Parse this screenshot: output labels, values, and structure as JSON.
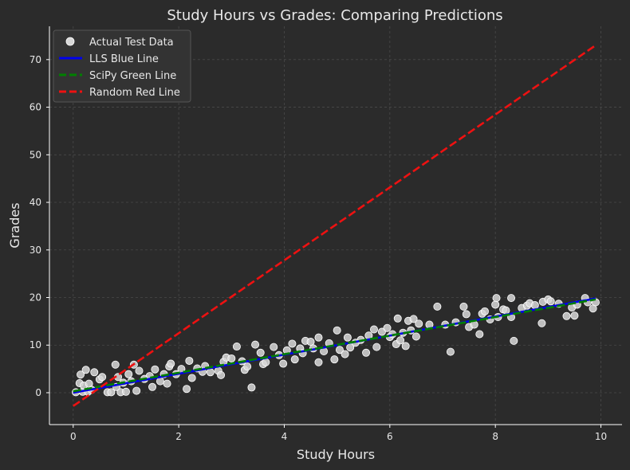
{
  "chart_data": {
    "type": "scatter",
    "title": "Study Hours vs Grades: Comparing Predictions",
    "xlabel": "Study Hours",
    "ylabel": "Grades",
    "xlim": [
      -0.45,
      10.4
    ],
    "ylim": [
      -6.7,
      77.0
    ],
    "x_ticks": [
      0,
      2,
      4,
      6,
      8,
      10
    ],
    "y_ticks": [
      0,
      10,
      20,
      30,
      40,
      50,
      60,
      70
    ],
    "grid": true,
    "legend_position": "top-left",
    "colors": {
      "background": "#2b2b2b",
      "axis": "#ffffff",
      "grid": "#4a4a4a",
      "points": "#d8d8d8",
      "blue_line": "#0000ee",
      "green_line": "#008000",
      "red_line": "#ee1111"
    },
    "series": [
      {
        "name": "Actual Test Data",
        "kind": "scatter",
        "points": [
          [
            0.05,
            0.1
          ],
          [
            0.12,
            2.0
          ],
          [
            0.14,
            3.8
          ],
          [
            0.18,
            0.2
          ],
          [
            0.2,
            1.5
          ],
          [
            0.24,
            4.8
          ],
          [
            0.28,
            0.2
          ],
          [
            0.3,
            1.9
          ],
          [
            0.35,
            0.6
          ],
          [
            0.4,
            4.3
          ],
          [
            0.5,
            2.8
          ],
          [
            0.55,
            3.3
          ],
          [
            0.65,
            0.1
          ],
          [
            0.72,
            0.1
          ],
          [
            0.8,
            5.9
          ],
          [
            0.82,
            1.2
          ],
          [
            0.85,
            3.3
          ],
          [
            0.9,
            0.1
          ],
          [
            0.95,
            2.1
          ],
          [
            1.0,
            0.2
          ],
          [
            1.05,
            3.9
          ],
          [
            1.1,
            2.4
          ],
          [
            1.15,
            5.9
          ],
          [
            1.2,
            0.4
          ],
          [
            1.25,
            4.6
          ],
          [
            1.35,
            2.9
          ],
          [
            1.45,
            3.5
          ],
          [
            1.5,
            1.2
          ],
          [
            1.55,
            4.9
          ],
          [
            1.65,
            2.4
          ],
          [
            1.72,
            3.9
          ],
          [
            1.78,
            1.9
          ],
          [
            1.82,
            5.5
          ],
          [
            1.85,
            6.1
          ],
          [
            1.95,
            3.9
          ],
          [
            2.05,
            5.0
          ],
          [
            2.15,
            0.8
          ],
          [
            2.2,
            6.7
          ],
          [
            2.25,
            3.1
          ],
          [
            2.35,
            5.1
          ],
          [
            2.45,
            4.4
          ],
          [
            2.5,
            5.6
          ],
          [
            2.6,
            4.3
          ],
          [
            2.75,
            4.6
          ],
          [
            2.8,
            3.7
          ],
          [
            2.85,
            6.5
          ],
          [
            2.9,
            7.4
          ],
          [
            3.0,
            7.2
          ],
          [
            3.1,
            9.7
          ],
          [
            3.2,
            6.6
          ],
          [
            3.25,
            4.8
          ],
          [
            3.3,
            5.5
          ],
          [
            3.38,
            1.1
          ],
          [
            3.45,
            10.1
          ],
          [
            3.55,
            8.4
          ],
          [
            3.6,
            6.0
          ],
          [
            3.65,
            6.4
          ],
          [
            3.8,
            9.6
          ],
          [
            3.9,
            7.9
          ],
          [
            3.98,
            6.1
          ],
          [
            4.05,
            8.9
          ],
          [
            4.15,
            10.3
          ],
          [
            4.2,
            7.0
          ],
          [
            4.3,
            9.3
          ],
          [
            4.35,
            8.3
          ],
          [
            4.4,
            10.9
          ],
          [
            4.5,
            10.7
          ],
          [
            4.55,
            9.3
          ],
          [
            4.65,
            11.6
          ],
          [
            4.65,
            6.4
          ],
          [
            4.75,
            8.7
          ],
          [
            4.85,
            10.4
          ],
          [
            4.95,
            7.0
          ],
          [
            5.0,
            13.1
          ],
          [
            5.05,
            9.0
          ],
          [
            5.15,
            8.1
          ],
          [
            5.2,
            11.6
          ],
          [
            5.25,
            9.5
          ],
          [
            5.35,
            10.5
          ],
          [
            5.45,
            11.1
          ],
          [
            5.55,
            8.4
          ],
          [
            5.6,
            12.0
          ],
          [
            5.7,
            13.3
          ],
          [
            5.75,
            9.6
          ],
          [
            5.85,
            12.8
          ],
          [
            5.95,
            13.6
          ],
          [
            6.0,
            11.7
          ],
          [
            6.05,
            12.3
          ],
          [
            6.12,
            10.2
          ],
          [
            6.15,
            15.6
          ],
          [
            6.2,
            11.0
          ],
          [
            6.25,
            12.6
          ],
          [
            6.3,
            9.8
          ],
          [
            6.35,
            15.1
          ],
          [
            6.4,
            13.1
          ],
          [
            6.45,
            15.5
          ],
          [
            6.5,
            11.8
          ],
          [
            6.55,
            14.5
          ],
          [
            6.75,
            14.3
          ],
          [
            6.9,
            18.1
          ],
          [
            7.05,
            14.3
          ],
          [
            7.15,
            8.6
          ],
          [
            7.25,
            14.8
          ],
          [
            7.4,
            18.1
          ],
          [
            7.45,
            16.5
          ],
          [
            7.5,
            13.8
          ],
          [
            7.6,
            14.3
          ],
          [
            7.7,
            12.3
          ],
          [
            7.75,
            16.6
          ],
          [
            7.8,
            17.1
          ],
          [
            7.9,
            15.4
          ],
          [
            8.0,
            18.5
          ],
          [
            8.02,
            19.9
          ],
          [
            8.05,
            15.9
          ],
          [
            8.15,
            17.5
          ],
          [
            8.2,
            17.3
          ],
          [
            8.3,
            15.9
          ],
          [
            8.3,
            19.9
          ],
          [
            8.35,
            10.9
          ],
          [
            8.5,
            17.8
          ],
          [
            8.6,
            18.3
          ],
          [
            8.65,
            18.8
          ],
          [
            8.75,
            18.4
          ],
          [
            8.88,
            14.6
          ],
          [
            8.9,
            19.1
          ],
          [
            9.0,
            19.6
          ],
          [
            9.05,
            19.2
          ],
          [
            9.2,
            18.7
          ],
          [
            9.35,
            16.1
          ],
          [
            9.45,
            17.9
          ],
          [
            9.5,
            16.2
          ],
          [
            9.55,
            18.5
          ],
          [
            9.7,
            19.9
          ],
          [
            9.75,
            19.0
          ],
          [
            9.85,
            17.7
          ],
          [
            9.9,
            19.0
          ]
        ]
      },
      {
        "name": "LLS Blue Line",
        "kind": "line",
        "style": "solid",
        "x": [
          0.0,
          9.9
        ],
        "y": [
          0.0,
          19.8
        ]
      },
      {
        "name": "SciPy Green Line",
        "kind": "line",
        "style": "dashed",
        "x": [
          0.0,
          9.9
        ],
        "y": [
          0.3,
          19.6
        ]
      },
      {
        "name": "Random Red Line",
        "kind": "line",
        "style": "dashed",
        "x": [
          0.0,
          9.9
        ],
        "y": [
          -2.8,
          73.0
        ]
      }
    ]
  }
}
